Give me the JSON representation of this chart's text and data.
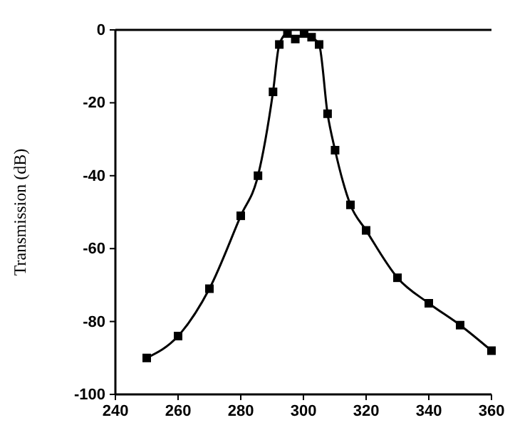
{
  "chart_data": {
    "type": "line",
    "ylabel": "Transmission (dB)",
    "marker": "square",
    "grid": false,
    "x": [
      250,
      260,
      270,
      280,
      285.5,
      290.3,
      292.3,
      294.9,
      297.4,
      300.2,
      302.6,
      305,
      307.7,
      310.1,
      315,
      320,
      330,
      340,
      350,
      360
    ],
    "series": [
      {
        "color": "#000000",
        "values": [
          -90,
          -84,
          -71,
          -51,
          -40,
          -17,
          -4,
          -1,
          -2.5,
          -1,
          -2,
          -4,
          -23,
          -33,
          -48,
          -55,
          -68,
          -75,
          -81,
          -88
        ]
      }
    ],
    "xlim": [
      240,
      360
    ],
    "xticks": [
      240,
      260,
      280,
      300,
      320,
      340,
      360
    ],
    "ylim": [
      -100,
      0
    ],
    "yticks": [
      -100,
      -80,
      -60,
      -40,
      -20,
      0
    ]
  }
}
